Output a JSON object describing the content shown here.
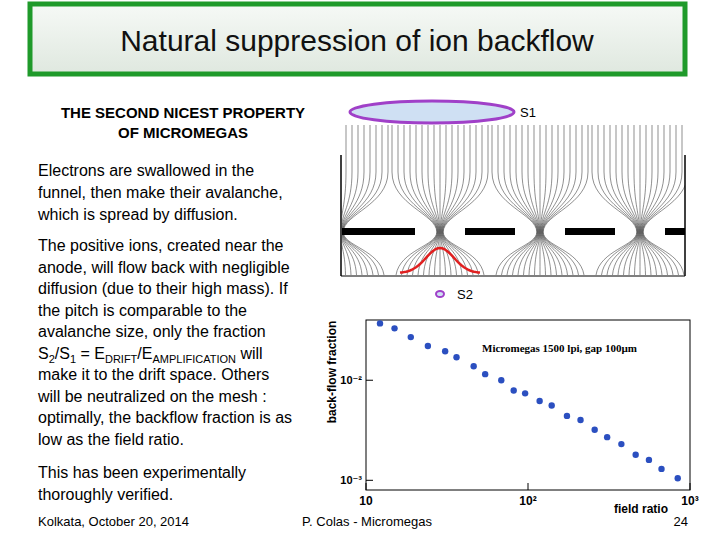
{
  "slide": {
    "title": "Natural suppression of ion backflow",
    "heading": [
      "THE SECOND NICEST PROPERTY",
      "OF MICROMEGAS"
    ],
    "paragraphs": [
      [
        [
          "Electrons are swallowed in the"
        ],
        [
          "funnel, then make their avalanche,"
        ],
        [
          "which is spread by diffusion."
        ]
      ],
      [
        [
          "The positive ions, created near the"
        ],
        [
          "anode, will flow back with negligible"
        ],
        [
          "diffusion (due to their high mass). If"
        ],
        [
          "the pitch is comparable to the"
        ],
        [
          "avalanche size, only the fraction"
        ],
        [
          "S",
          {
            "sub": "2"
          },
          "/S",
          {
            "sub": "1"
          },
          " = E",
          {
            "sub": "DRIFT"
          },
          "/E",
          {
            "sub": "AMPLIFICATION"
          },
          " will"
        ],
        [
          "make it to the drift space. Others"
        ],
        [
          "will be neutralized on the mesh :"
        ],
        [
          "optimally, the backflow fraction is as"
        ],
        [
          "low as the field ratio."
        ]
      ],
      [
        [
          "This has been experimentally"
        ],
        [
          "thoroughly verified."
        ]
      ]
    ],
    "footer": {
      "left": "Kolkata, October 20, 2014",
      "center": "P. Colas - Micromegas",
      "page": "24"
    }
  },
  "diagram": {
    "s1_label": "S1",
    "s2_label": "S2"
  },
  "chart_data": {
    "type": "scatter",
    "x_label": "field ratio",
    "y_label": "back-flow fraction",
    "log": true,
    "grid": false,
    "legend": "top",
    "xlim": [
      10,
      1000
    ],
    "ylim": [
      0.0008,
      0.04
    ],
    "xticks": [
      10,
      {
        "value": 100,
        "label": "10²"
      },
      {
        "value": 1000,
        "label": "10³"
      }
    ],
    "yticks": [
      {
        "value": 0.01,
        "label": "10⁻²"
      },
      {
        "value": 0.001,
        "label": "10⁻³"
      }
    ],
    "x": [
      12.2,
      15.0,
      18.9,
      24.1,
      30.8,
      36.2,
      46.2,
      54.4,
      68.4,
      81.6,
      96,
      118,
      140,
      174,
      211,
      258,
      308,
      377,
      462,
      558,
      667,
      840
    ],
    "series": [
      {
        "name": "Micromegas 1500 lpi, gap 100µm",
        "color": "#2b4fc0",
        "marker": "circle",
        "values": [
          0.037,
          0.033,
          0.027,
          0.022,
          0.0195,
          0.017,
          0.0138,
          0.0115,
          0.01,
          0.0079,
          0.0074,
          0.0062,
          0.0056,
          0.0044,
          0.004,
          0.0032,
          0.0027,
          0.0023,
          0.0018,
          0.0016,
          0.0013,
          0.00105
        ]
      }
    ]
  }
}
